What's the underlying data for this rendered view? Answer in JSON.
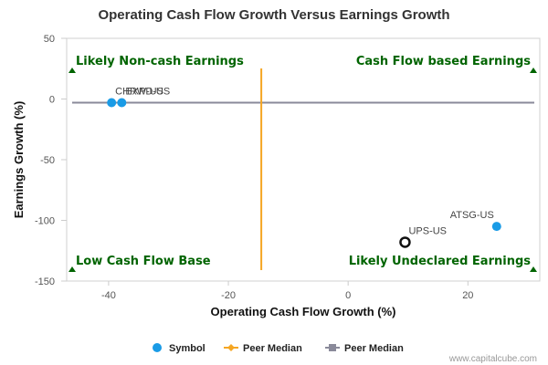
{
  "chart_data": {
    "type": "scatter",
    "title": "Operating Cash Flow Growth Versus Earnings Growth",
    "xlabel": "Operating Cash Flow Growth (%)",
    "ylabel": "Earnings Growth (%)",
    "xlim": [
      -47,
      32
    ],
    "ylim": [
      -150,
      50
    ],
    "x_ticks": [
      -40,
      -20,
      0,
      20
    ],
    "y_ticks": [
      50,
      0,
      -50,
      -100,
      -150
    ],
    "grid": false,
    "legend_position": "bottom",
    "quadrant_labels": {
      "top_left": "Likely Non-cash Earnings",
      "top_right": "Cash Flow based Earnings",
      "bottom_left": "Low Cash Flow Base",
      "bottom_right": "Likely Undeclared Earnings"
    },
    "points": [
      {
        "label": "CHRW-US",
        "x": -39.5,
        "y": -3,
        "style": "peer"
      },
      {
        "label": "EXPD-US",
        "x": -37.8,
        "y": -3,
        "style": "peer"
      },
      {
        "label": "ATSG-US",
        "x": 24.8,
        "y": -105,
        "style": "peer"
      },
      {
        "label": "UPS-US",
        "x": 9.5,
        "y": -118,
        "style": "subject"
      }
    ],
    "peer_median_x": -14.5,
    "peer_median_y": -3,
    "legend": [
      {
        "name": "Symbol",
        "color": "#1a9be6",
        "marker": "circle"
      },
      {
        "name": "Peer Median",
        "color": "#f5a623",
        "marker": "diamond-line"
      },
      {
        "name": "Peer Median",
        "color": "#8a8a9a",
        "marker": "square-line"
      }
    ],
    "colors": {
      "symbol": "#1a9be6",
      "median_x_line": "#f5a623",
      "median_y_line": "#8a8a9a",
      "quadrant_text": "#006400",
      "subject_marker": "#111111"
    }
  },
  "credit": "www.capitalcube.com"
}
